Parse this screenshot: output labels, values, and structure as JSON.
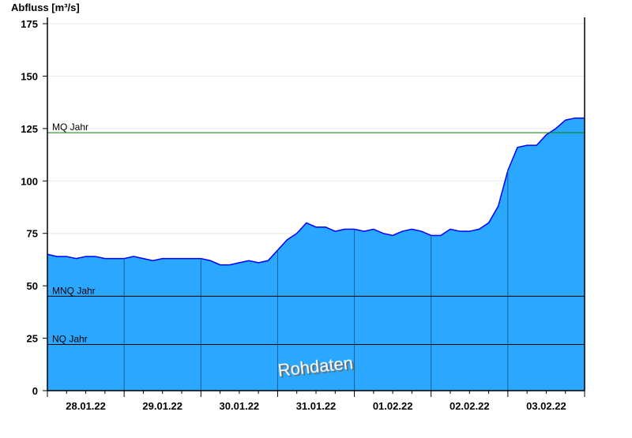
{
  "chart_data": {
    "type": "area",
    "ylabel": "Abfluss [m³/s]",
    "ylim": [
      0,
      175
    ],
    "yticks": [
      0,
      25,
      50,
      75,
      100,
      125,
      150,
      175
    ],
    "xlim": [
      "28.01.22 00:00",
      "04.02.22 00:00"
    ],
    "xtick_labels": [
      "28.01.22",
      "29.01.22",
      "30.01.22",
      "31.01.22",
      "01.02.22",
      "02.02.22",
      "03.02.22"
    ],
    "grid": true,
    "sample_interval_hours": 3,
    "values": [
      65,
      64,
      64,
      63,
      64,
      64,
      63,
      63,
      63,
      64,
      63,
      62,
      63,
      63,
      63,
      63,
      63,
      62,
      60,
      60,
      61,
      62,
      61,
      62,
      67,
      72,
      75,
      80,
      78,
      78,
      76,
      77,
      77,
      76,
      77,
      75,
      74,
      76,
      77,
      76,
      74,
      74,
      77,
      76,
      76,
      77,
      80,
      88,
      105,
      116,
      117,
      117,
      122,
      125,
      129,
      130,
      130
    ],
    "thresholds": [
      {
        "label": "MQ Jahr",
        "value": 123,
        "color": "#008000"
      },
      {
        "label": "MNQ Jahr",
        "value": 45,
        "color": "#000000"
      },
      {
        "label": "NQ Jahr",
        "value": 22,
        "color": "#000000"
      }
    ],
    "watermark": "Rohdaten",
    "colors": {
      "fill": "#2aa8ff",
      "line": "#0000ff",
      "grid": "#e8e8e8",
      "day_line": "#1a5f8f"
    }
  }
}
